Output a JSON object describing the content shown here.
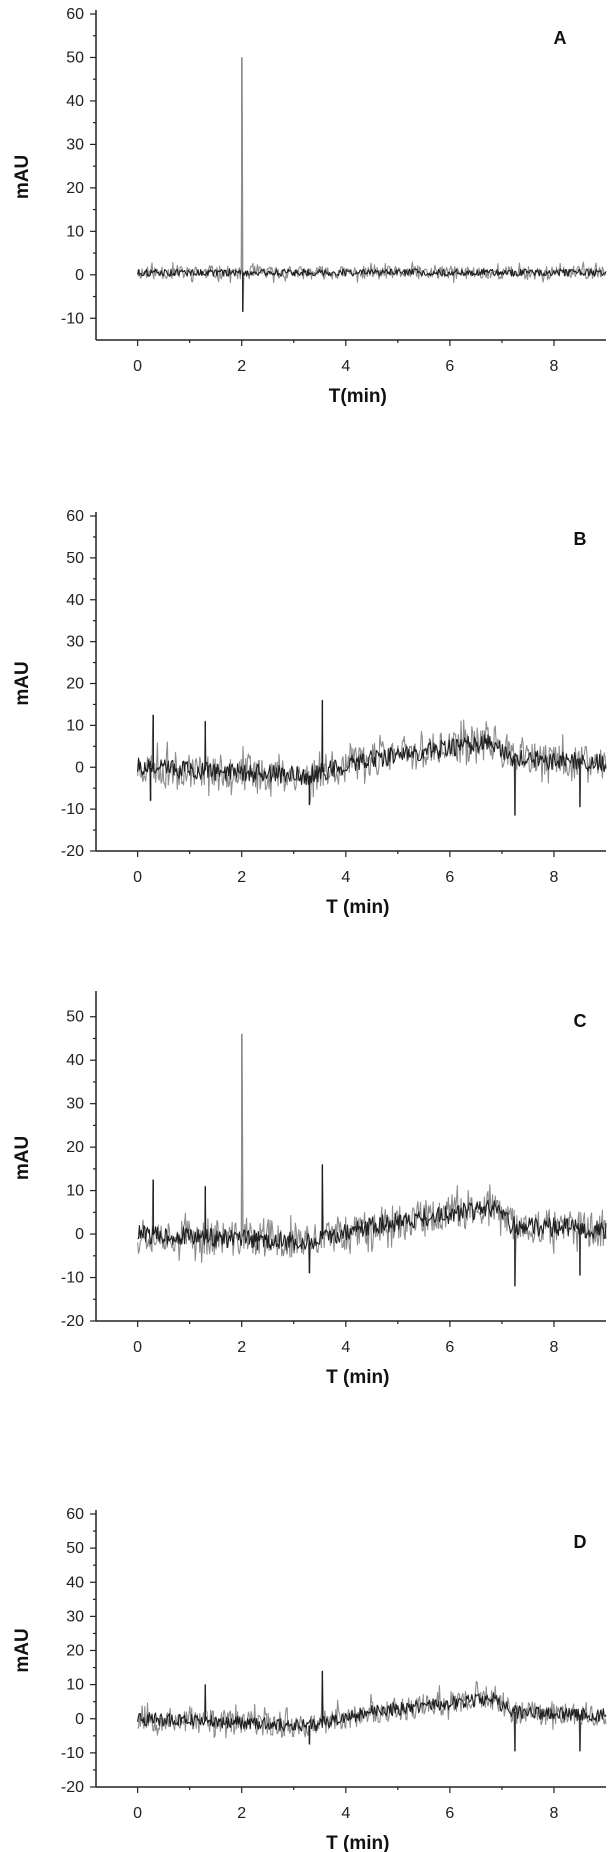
{
  "colors": {
    "trace_light": "#8c8c8c",
    "trace_dark": "#1e1e1e",
    "axis": "#222222",
    "background": "#ffffff"
  },
  "chart_data": [
    {
      "type": "line",
      "panel_label": "A",
      "xlabel": "T(min)",
      "ylabel": "mAU",
      "xlim": [
        -0.8,
        9
      ],
      "ylim": [
        -15,
        60
      ],
      "x_ticks": [
        0,
        2,
        4,
        6,
        8
      ],
      "y_ticks": [
        -10,
        0,
        10,
        20,
        30,
        40,
        50,
        60
      ],
      "grid": false,
      "series": [
        {
          "x_range": [
            0,
            9
          ],
          "baseline": 0.5,
          "noise": 3,
          "seed": 11,
          "spikes": [
            {
              "x": 2.0,
              "y": 50
            },
            {
              "x": 2.02,
              "y": -8.5
            }
          ]
        }
      ]
    },
    {
      "type": "line",
      "panel_label": "B",
      "xlabel": "T (min)",
      "ylabel": "mAU",
      "xlim": [
        -0.8,
        9
      ],
      "ylim": [
        -20,
        60
      ],
      "x_ticks": [
        0,
        2,
        4,
        6,
        8
      ],
      "y_ticks": [
        -20,
        -10,
        0,
        10,
        20,
        30,
        40,
        50,
        60
      ],
      "grid": false,
      "series": [
        {
          "x_range": [
            0,
            9
          ],
          "baseline": 1,
          "noise": 8,
          "seed": 23,
          "baseline_points": [
            [
              0,
              0
            ],
            [
              3.3,
              -2
            ],
            [
              4.5,
              2
            ],
            [
              6.8,
              6
            ],
            [
              7.2,
              2
            ],
            [
              9,
              1
            ]
          ],
          "spikes": [
            {
              "x": 0.3,
              "y": 12.5
            },
            {
              "x": 0.25,
              "y": -8
            },
            {
              "x": 1.3,
              "y": 11
            },
            {
              "x": 3.55,
              "y": 16
            },
            {
              "x": 3.3,
              "y": -9
            },
            {
              "x": 7.25,
              "y": -11.5
            },
            {
              "x": 8.5,
              "y": -9.5
            }
          ]
        }
      ]
    },
    {
      "type": "line",
      "panel_label": "C",
      "xlabel": "T (min)",
      "ylabel": "mAU",
      "xlim": [
        -0.8,
        9
      ],
      "ylim": [
        -20,
        55
      ],
      "x_ticks": [
        0,
        2,
        4,
        6,
        8
      ],
      "y_ticks": [
        -20,
        -10,
        0,
        10,
        20,
        30,
        40,
        50
      ],
      "grid": false,
      "series": [
        {
          "x_range": [
            0,
            9
          ],
          "baseline": 1,
          "noise": 8,
          "seed": 37,
          "baseline_points": [
            [
              0,
              0
            ],
            [
              3.3,
              -2
            ],
            [
              4.5,
              2
            ],
            [
              6.8,
              6
            ],
            [
              7.2,
              2
            ],
            [
              9,
              1
            ]
          ],
          "spikes": [
            {
              "x": 2.0,
              "y": 46
            },
            {
              "x": 0.3,
              "y": 12.5
            },
            {
              "x": 1.3,
              "y": 11
            },
            {
              "x": 3.55,
              "y": 16
            },
            {
              "x": 3.3,
              "y": -9
            },
            {
              "x": 7.25,
              "y": -12
            },
            {
              "x": 8.5,
              "y": -9.5
            }
          ]
        }
      ]
    },
    {
      "type": "line",
      "panel_label": "D",
      "xlabel": "T (min)",
      "ylabel": "mAU",
      "xlim": [
        -0.8,
        9
      ],
      "ylim": [
        -20,
        60
      ],
      "x_ticks": [
        0,
        2,
        4,
        6,
        8
      ],
      "y_ticks": [
        -20,
        -10,
        0,
        10,
        20,
        30,
        40,
        50,
        60
      ],
      "grid": false,
      "series": [
        {
          "x_range": [
            0,
            9
          ],
          "baseline": 1,
          "noise": 7,
          "seed": 53,
          "baseline_points": [
            [
              0,
              0
            ],
            [
              3.3,
              -2
            ],
            [
              4.5,
              2
            ],
            [
              6.8,
              6
            ],
            [
              7.2,
              2
            ],
            [
              9,
              1
            ]
          ],
          "spikes": [
            {
              "x": 1.3,
              "y": 10
            },
            {
              "x": 3.55,
              "y": 14
            },
            {
              "x": 3.3,
              "y": -7.5
            },
            {
              "x": 7.25,
              "y": -9.5
            },
            {
              "x": 8.5,
              "y": -9.5
            }
          ]
        }
      ]
    }
  ]
}
